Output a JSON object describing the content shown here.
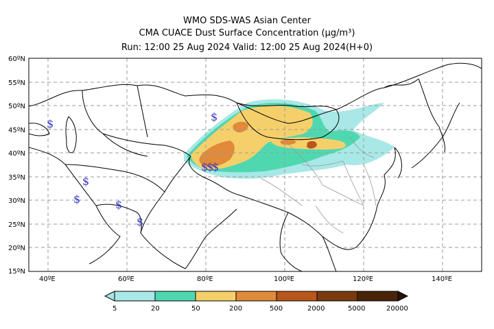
{
  "header": {
    "line1": "WMO SDS-WAS Asian Center",
    "line2": "CMA CUACE Dust Surface Concentration (µg/m³)",
    "line3": "Run: 12:00 25 Aug 2024    Valid: 12:00 25 Aug 2024(H+0)"
  },
  "map": {
    "lon_labels": [
      "40ºE",
      "60ºE",
      "80ºE",
      "100ºE",
      "120ºE",
      "140ºE"
    ],
    "lat_labels": [
      "60ºN",
      "55ºN",
      "50ºN",
      "45ºN",
      "40ºN",
      "35ºN",
      "30ºN",
      "25ºN",
      "20ºN",
      "15ºN"
    ],
    "lon_range": [
      35,
      150
    ],
    "lat_range": [
      15,
      60
    ],
    "station_symbol": "$",
    "symbol_color": "#3a3ac0"
  },
  "colorbar": {
    "tick_labels": [
      "5",
      "20",
      "50",
      "200",
      "500",
      "2000",
      "5000",
      "20000"
    ],
    "colors": [
      "#a8e8e6",
      "#4fd8b0",
      "#f5d06a",
      "#e08a3a",
      "#b8561c",
      "#7a3a0e",
      "#4a2408",
      "#2a1404"
    ]
  }
}
